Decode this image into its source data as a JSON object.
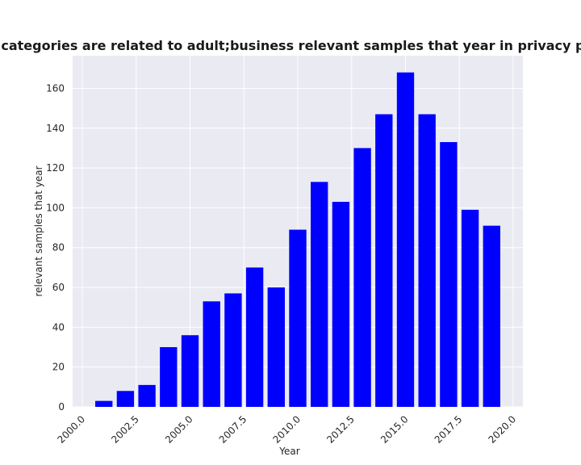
{
  "chart_data": {
    "type": "bar",
    "title": "Samples when categories are related to adult;business relevant samples that year in privacy policies by Year",
    "xlabel": "Year",
    "ylabel": "relevant samples that year",
    "x": [
      2001,
      2002,
      2003,
      2004,
      2005,
      2006,
      2007,
      2008,
      2009,
      2010,
      2011,
      2012,
      2013,
      2014,
      2015,
      2016,
      2017,
      2018,
      2019
    ],
    "values": [
      3,
      8,
      11,
      30,
      36,
      53,
      57,
      70,
      60,
      89,
      113,
      103,
      130,
      147,
      168,
      147,
      133,
      99,
      91
    ],
    "xlim": [
      1999.55,
      2020.45
    ],
    "ylim": [
      0,
      176.4
    ],
    "xticks": [
      2000.0,
      2002.5,
      2005.0,
      2007.5,
      2010.0,
      2012.5,
      2015.0,
      2017.5,
      2020.0
    ],
    "xtick_labels": [
      "2000.0",
      "2002.5",
      "2005.0",
      "2007.5",
      "2010.0",
      "2012.5",
      "2015.0",
      "2017.5",
      "2020.0"
    ],
    "yticks": [
      0,
      20,
      40,
      60,
      80,
      100,
      120,
      140,
      160
    ],
    "ytick_labels": [
      "0",
      "20",
      "40",
      "60",
      "80",
      "100",
      "120",
      "140",
      "160"
    ],
    "bar_color": "#0000ff",
    "background_color": "#eaeaf2",
    "grid_color": "#ffffff",
    "grid": true,
    "legend": false
  }
}
